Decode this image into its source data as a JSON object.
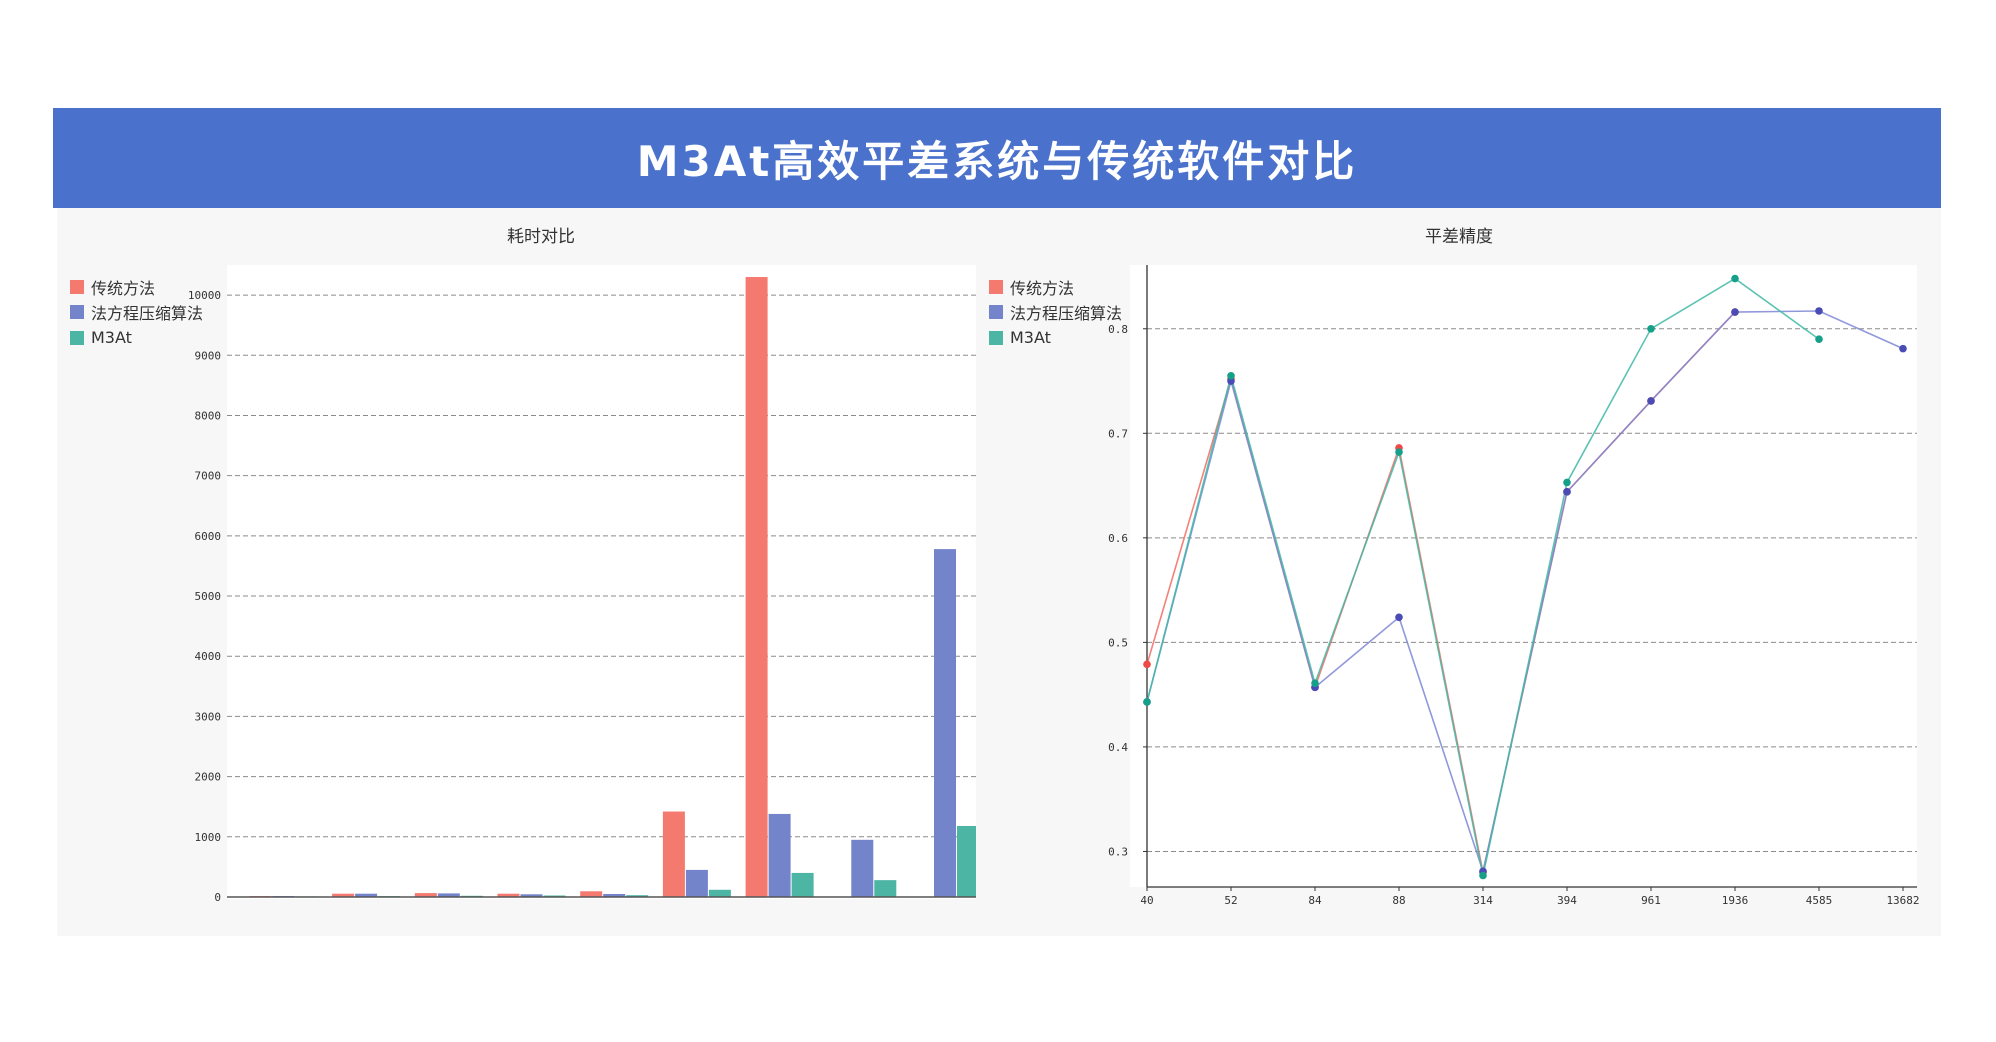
{
  "banner": {
    "title": "M3At高效平差系统与传统软件对比"
  },
  "colors": {
    "banner": "#4a72cc",
    "panel": "#f7f7f7",
    "series": [
      "#f47a70",
      "#7384cb",
      "#4db5a4"
    ],
    "points": [
      "#ef4a48",
      "#4a4cb6",
      "#16a08a"
    ]
  },
  "chart_data": [
    {
      "type": "bar",
      "title": "耗时对比",
      "ylim": [
        0,
        10500
      ],
      "yticks": [
        0,
        1000,
        2000,
        3000,
        4000,
        5000,
        6000,
        7000,
        8000,
        9000,
        10000
      ],
      "grid": true,
      "legend_position": "top-left",
      "series": [
        {
          "name": "传统方法",
          "values": [
            15,
            55,
            65,
            55,
            95,
            1420,
            10300,
            null,
            null
          ]
        },
        {
          "name": "法方程压缩算法",
          "values": [
            15,
            55,
            60,
            45,
            50,
            450,
            1380,
            950,
            5780
          ]
        },
        {
          "name": "M3At",
          "values": [
            10,
            15,
            20,
            25,
            30,
            120,
            400,
            280,
            1180
          ]
        }
      ]
    },
    {
      "type": "line",
      "title": "平差精度",
      "x": [
        40,
        52,
        84,
        88,
        314,
        394,
        961,
        1936,
        4585,
        13682
      ],
      "ylim": [
        0.266,
        0.861
      ],
      "yticks": [
        0.3,
        0.4,
        0.5,
        0.6,
        0.7,
        0.8
      ],
      "grid": true,
      "legend_position": "top-left",
      "series": [
        {
          "name": "传统方法",
          "values": [
            0.479,
            0.752,
            0.457,
            0.686,
            0.28,
            0.644,
            0.731,
            0.816,
            null,
            null
          ]
        },
        {
          "name": "法方程压缩算法",
          "values": [
            0.443,
            0.75,
            0.457,
            0.524,
            0.281,
            0.644,
            0.731,
            0.816,
            0.817,
            0.781
          ]
        },
        {
          "name": "M3At",
          "values": [
            0.443,
            0.755,
            0.461,
            0.682,
            0.277,
            0.653,
            0.8,
            0.848,
            0.79,
            null
          ]
        }
      ]
    }
  ]
}
